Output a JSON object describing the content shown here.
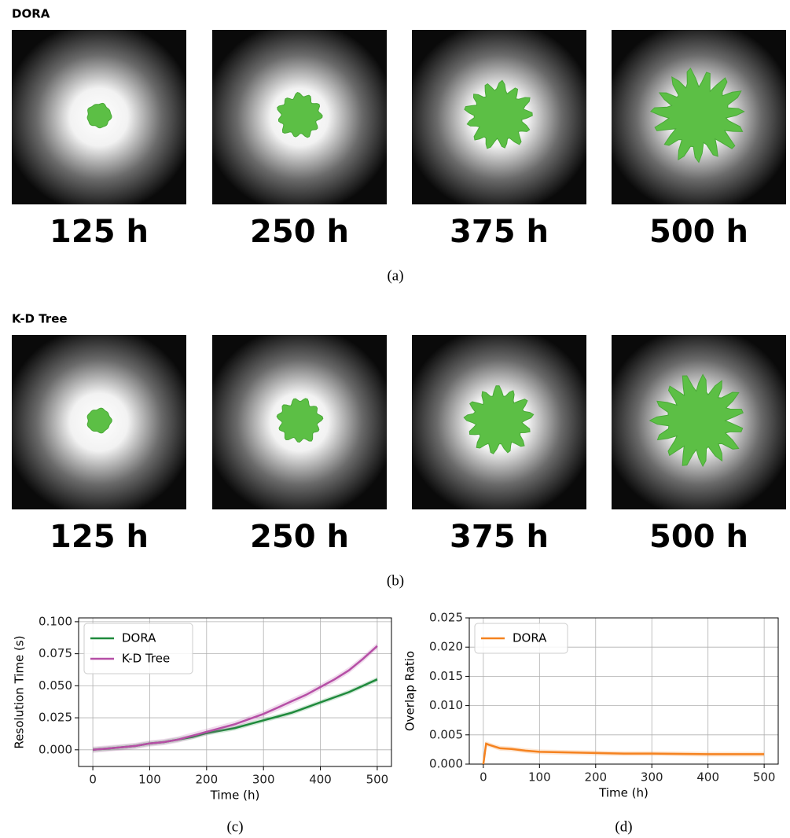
{
  "panels": [
    {
      "title": "DORA",
      "frames": [
        "125 h",
        "250 h",
        "375 h",
        "500 h"
      ],
      "caption": "(a)"
    },
    {
      "title": "K-D Tree",
      "frames": [
        "125 h",
        "250 h",
        "375 h",
        "500 h"
      ],
      "caption": "(b)"
    }
  ],
  "chart_data": [
    {
      "type": "line",
      "caption": "(c)",
      "xlabel": "Time (h)",
      "ylabel": "Resolution Time (s)",
      "x": [
        0,
        25,
        50,
        75,
        100,
        125,
        150,
        175,
        200,
        225,
        250,
        275,
        300,
        325,
        350,
        375,
        400,
        425,
        450,
        475,
        500
      ],
      "series": [
        {
          "name": "DORA",
          "color": "#1f8a3c",
          "values": [
            0,
            0.001,
            0.002,
            0.003,
            0.005,
            0.006,
            0.008,
            0.01,
            0.013,
            0.015,
            0.017,
            0.02,
            0.023,
            0.026,
            0.029,
            0.033,
            0.037,
            0.041,
            0.045,
            0.05,
            0.055
          ]
        },
        {
          "name": "K-D Tree",
          "color": "#b64fa6",
          "values": [
            0,
            0.001,
            0.002,
            0.003,
            0.005,
            0.006,
            0.008,
            0.011,
            0.014,
            0.017,
            0.02,
            0.024,
            0.028,
            0.033,
            0.038,
            0.043,
            0.049,
            0.055,
            0.062,
            0.071,
            0.081
          ]
        }
      ],
      "xlim": [
        -25,
        525
      ],
      "ylim": [
        -0.013,
        0.103
      ],
      "xticks": [
        0,
        100,
        200,
        300,
        400,
        500
      ],
      "yticks": [
        {
          "value": 0,
          "label": "0.000"
        },
        {
          "value": 0.025,
          "label": "0.025"
        },
        {
          "value": 0.05,
          "label": "0.050"
        },
        {
          "value": 0.075,
          "label": "0.075"
        },
        {
          "value": 0.1,
          "label": "0.100"
        }
      ],
      "grid": true,
      "legend": "upper-left"
    },
    {
      "type": "line",
      "caption": "(d)",
      "xlabel": "Time (h)",
      "ylabel": "Overlap Ratio",
      "x": [
        0,
        5,
        10,
        20,
        30,
        50,
        75,
        100,
        150,
        200,
        250,
        300,
        400,
        500
      ],
      "series": [
        {
          "name": "DORA",
          "color": "#f5821f",
          "values": [
            0,
            0.0035,
            0.0033,
            0.003,
            0.0027,
            0.0026,
            0.0023,
            0.0021,
            0.002,
            0.0019,
            0.0018,
            0.0018,
            0.0017,
            0.0017
          ]
        }
      ],
      "xlim": [
        -25,
        525
      ],
      "ylim": [
        0,
        0.025
      ],
      "xticks": [
        0,
        100,
        200,
        300,
        400,
        500
      ],
      "yticks": [
        {
          "value": 0,
          "label": "0.000"
        },
        {
          "value": 0.005,
          "label": "0.005"
        },
        {
          "value": 0.01,
          "label": "0.010"
        },
        {
          "value": 0.015,
          "label": "0.015"
        },
        {
          "value": 0.02,
          "label": "0.020"
        },
        {
          "value": 0.025,
          "label": "0.025"
        }
      ],
      "grid": true,
      "legend": "upper-left"
    }
  ]
}
